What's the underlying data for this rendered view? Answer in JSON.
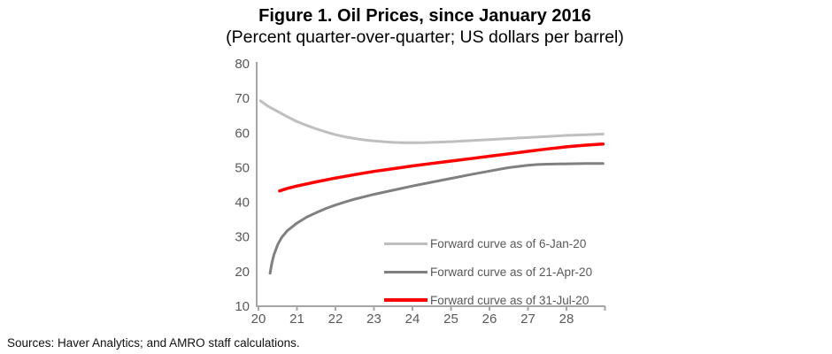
{
  "title": "Figure 1. Oil Prices, since January 2016",
  "subtitle": "(Percent quarter-over-quarter; US dollars per barrel)",
  "source_note": "Sources: Haver Analytics; and AMRO staff calculations.",
  "colors": {
    "axis": "#a6a6a6",
    "tick_label": "#595959",
    "legend_text": "#595959",
    "series_jan": "#bfbfbf",
    "series_apr": "#808080",
    "series_jul": "#ff0000"
  },
  "chart_data": {
    "type": "line",
    "title": "Figure 1. Oil Prices, since January 2016",
    "subtitle": "(Percent quarter-over-quarter; US dollars per barrel)",
    "xlabel": "",
    "ylabel": "",
    "xlim": [
      20,
      29
    ],
    "ylim": [
      10,
      80
    ],
    "x_ticks": [
      20,
      21,
      22,
      23,
      24,
      25,
      26,
      27,
      28
    ],
    "y_ticks": [
      10,
      20,
      30,
      40,
      50,
      60,
      70,
      80
    ],
    "grid": false,
    "legend_position": "inside-lower-right",
    "series": [
      {
        "name": "Forward curve as of 6-Jan-20",
        "color": "#bfbfbf",
        "width": 3,
        "points": [
          [
            20.05,
            69.3
          ],
          [
            20.25,
            67.7
          ],
          [
            20.5,
            66.2
          ],
          [
            20.75,
            64.7
          ],
          [
            21,
            63.3
          ],
          [
            21.25,
            62.2
          ],
          [
            21.5,
            61.2
          ],
          [
            21.75,
            60.3
          ],
          [
            22,
            59.5
          ],
          [
            22.25,
            58.9
          ],
          [
            22.5,
            58.4
          ],
          [
            22.75,
            58.0
          ],
          [
            23,
            57.7
          ],
          [
            23.25,
            57.5
          ],
          [
            23.5,
            57.3
          ],
          [
            23.75,
            57.2
          ],
          [
            24,
            57.2
          ],
          [
            24.25,
            57.2
          ],
          [
            24.5,
            57.3
          ],
          [
            25,
            57.5
          ],
          [
            25.5,
            57.8
          ],
          [
            26,
            58.1
          ],
          [
            26.5,
            58.4
          ],
          [
            27,
            58.7
          ],
          [
            27.5,
            59.0
          ],
          [
            28,
            59.3
          ],
          [
            28.5,
            59.5
          ],
          [
            28.95,
            59.7
          ]
        ]
      },
      {
        "name": "Forward curve as of 21-Apr-20",
        "color": "#808080",
        "width": 3,
        "points": [
          [
            20.3,
            19.5
          ],
          [
            20.35,
            22.5
          ],
          [
            20.4,
            24.8
          ],
          [
            20.5,
            27.8
          ],
          [
            20.6,
            29.8
          ],
          [
            20.75,
            31.8
          ],
          [
            21,
            34.0
          ],
          [
            21.25,
            35.7
          ],
          [
            21.5,
            37.0
          ],
          [
            21.75,
            38.2
          ],
          [
            22,
            39.2
          ],
          [
            22.25,
            40.1
          ],
          [
            22.5,
            40.9
          ],
          [
            23,
            42.3
          ],
          [
            23.5,
            43.5
          ],
          [
            24,
            44.7
          ],
          [
            24.5,
            45.8
          ],
          [
            25,
            46.9
          ],
          [
            25.5,
            48.0
          ],
          [
            26,
            49.0
          ],
          [
            26.5,
            50.0
          ],
          [
            27,
            50.7
          ],
          [
            27.25,
            50.9
          ],
          [
            27.5,
            51.0
          ],
          [
            28,
            51.1
          ],
          [
            28.5,
            51.2
          ],
          [
            28.95,
            51.2
          ]
        ]
      },
      {
        "name": "Forward curve as of 31-Jul-20",
        "color": "#ff0000",
        "width": 3.5,
        "points": [
          [
            20.55,
            43.3
          ],
          [
            20.75,
            44.0
          ],
          [
            21,
            44.7
          ],
          [
            21.5,
            45.9
          ],
          [
            22,
            47.0
          ],
          [
            22.5,
            48.0
          ],
          [
            23,
            48.9
          ],
          [
            23.5,
            49.7
          ],
          [
            24,
            50.5
          ],
          [
            24.5,
            51.2
          ],
          [
            25,
            51.9
          ],
          [
            25.5,
            52.6
          ],
          [
            26,
            53.3
          ],
          [
            26.5,
            54.0
          ],
          [
            27,
            54.7
          ],
          [
            27.5,
            55.4
          ],
          [
            28,
            56.0
          ],
          [
            28.5,
            56.5
          ],
          [
            28.95,
            56.8
          ]
        ]
      }
    ]
  }
}
